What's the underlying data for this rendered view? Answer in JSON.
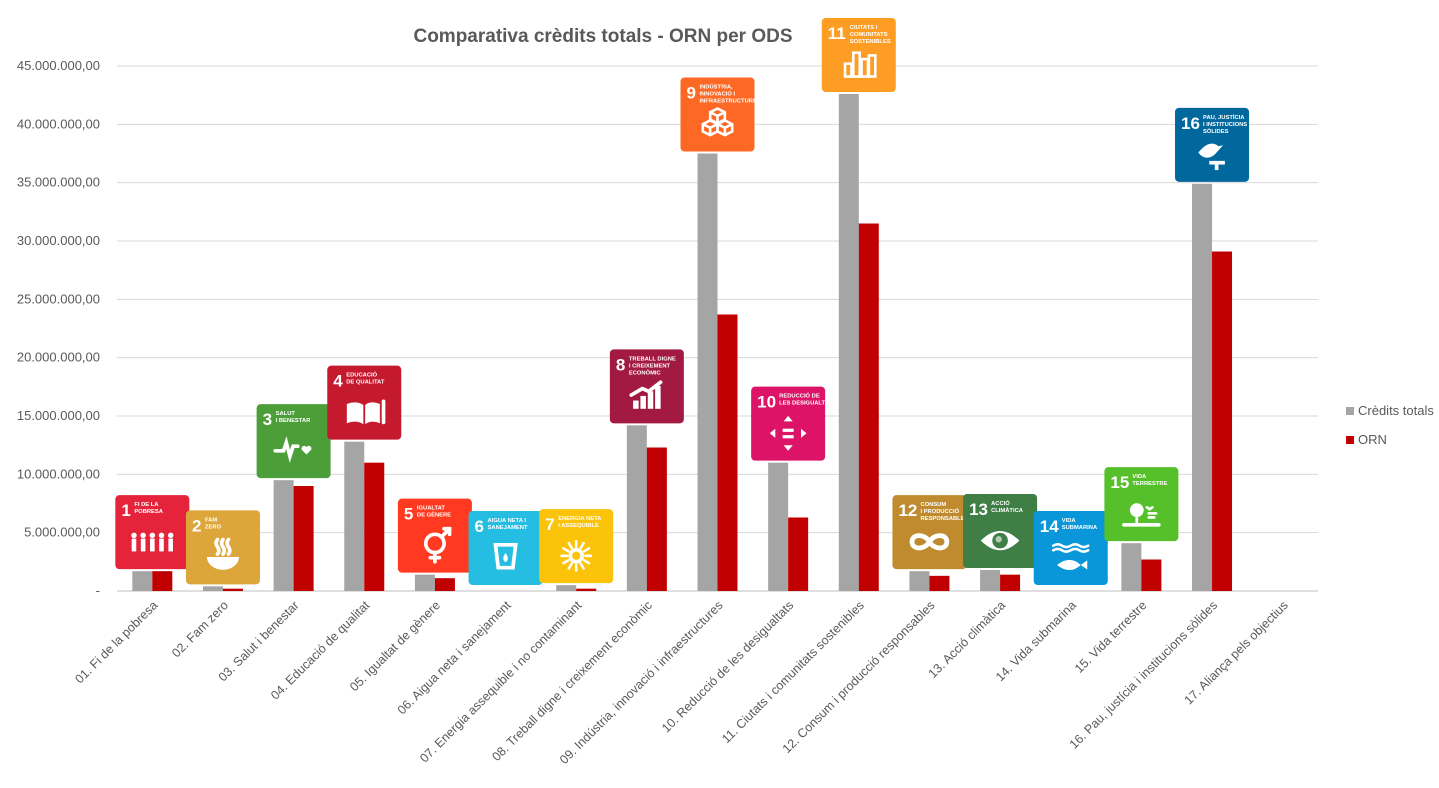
{
  "chart_data": {
    "type": "bar",
    "title": "Comparativa crèdits totals - ORN per ODS",
    "ylim": [
      0,
      45000000
    ],
    "yticks": [
      "-",
      "5.000.000,00",
      "10.000.000,00",
      "15.000.000,00",
      "20.000.000,00",
      "25.000.000,00",
      "30.000.000,00",
      "35.000.000,00",
      "40.000.000,00",
      "45.000.000,00"
    ],
    "grid": true,
    "legend_position": "right",
    "categories": [
      "01. Fi de la pobresa",
      "02. Fam zero",
      "03. Salut i benestar",
      "04. Educació de qualitat",
      "05. Igualtat de gènere",
      "06. Aigua neta i sanejament",
      "07. Energia assequible i no contaminant",
      "08. Treball digne i creixement econòmic",
      "09. Indústria, innovació i infraestructures",
      "10. Reducció de les desigualtats",
      "11. Ciutats i comunitats sostenibles",
      "12. Consum i producció responsables",
      "13. Acció climàtica",
      "14. Vida submarina",
      "15. Vida terrestre",
      "16. Pau, justícia i institucions sòlides",
      "17. Aliança pels objectius"
    ],
    "series": [
      {
        "name": "Crèdits totals",
        "color": "#a5a5a5",
        "values": [
          1700000,
          400000,
          9500000,
          12800000,
          1400000,
          0,
          500000,
          14200000,
          37500000,
          11000000,
          42600000,
          1700000,
          1800000,
          0,
          4100000,
          34900000,
          0
        ]
      },
      {
        "name": "ORN",
        "color": "#c00000",
        "values": [
          1700000,
          200000,
          9000000,
          11000000,
          1100000,
          0,
          200000,
          12300000,
          23700000,
          6300000,
          31500000,
          1300000,
          1400000,
          0,
          2700000,
          29100000,
          0
        ]
      }
    ]
  },
  "sdg_icons": [
    {
      "num": "1",
      "lines": [
        "FI DE LA",
        "POBRESA"
      ],
      "color": "#e5243b",
      "icon": "family-icon"
    },
    {
      "num": "2",
      "lines": [
        "FAM",
        "ZERO"
      ],
      "color": "#dda63a",
      "icon": "bowl-icon"
    },
    {
      "num": "3",
      "lines": [
        "SALUT",
        "I BENESTAR"
      ],
      "color": "#4c9f38",
      "icon": "heartbeat-icon"
    },
    {
      "num": "4",
      "lines": [
        "EDUCACIÓ",
        "DE QUALITAT"
      ],
      "color": "#c5192d",
      "icon": "book-icon"
    },
    {
      "num": "5",
      "lines": [
        "IGUALTAT",
        "DE GÈNERE"
      ],
      "color": "#ff3a21",
      "icon": "gender-icon"
    },
    {
      "num": "6",
      "lines": [
        "AIGUA NETA I",
        "SANEJAMENT"
      ],
      "color": "#26bde2",
      "icon": "water-icon"
    },
    {
      "num": "7",
      "lines": [
        "ENERGIA NETA",
        "I ASSEQUIBLE"
      ],
      "color": "#fcc30b",
      "icon": "sun-icon"
    },
    {
      "num": "8",
      "lines": [
        "TREBALL DIGNE",
        "I CREIXEMENT",
        "ECONÒMIC"
      ],
      "color": "#a21942",
      "icon": "growth-icon"
    },
    {
      "num": "9",
      "lines": [
        "INDÚSTRIA,",
        "INNOVACIÓ I",
        "INFRAESTRUCTURES"
      ],
      "color": "#fd6925",
      "icon": "cubes-icon"
    },
    {
      "num": "10",
      "lines": [
        "REDUCCIÓ DE",
        "LES DESIGUALTATS"
      ],
      "color": "#dd1367",
      "icon": "equality-icon"
    },
    {
      "num": "11",
      "lines": [
        "CIUTATS I",
        "COMUNITATS",
        "SOSTENIBLES"
      ],
      "color": "#fd9d24",
      "icon": "city-icon"
    },
    {
      "num": "12",
      "lines": [
        "CONSUM",
        "I PRODUCCIÓ",
        "RESPONSABLES"
      ],
      "color": "#bf8b2e",
      "icon": "infinity-icon"
    },
    {
      "num": "13",
      "lines": [
        "ACCIÓ",
        "CLIMÀTICA"
      ],
      "color": "#3f7e44",
      "icon": "eye-globe-icon"
    },
    {
      "num": "14",
      "lines": [
        "VIDA",
        "SUBMARINA"
      ],
      "color": "#0a97d9",
      "icon": "fish-icon"
    },
    {
      "num": "15",
      "lines": [
        "VIDA",
        "TERRESTRE"
      ],
      "color": "#56c02b",
      "icon": "tree-icon"
    },
    {
      "num": "16",
      "lines": [
        "PAU, JUSTÍCIA",
        "I INSTITUCIONS",
        "SÒLIDES"
      ],
      "color": "#00689d",
      "icon": "dove-icon"
    }
  ]
}
